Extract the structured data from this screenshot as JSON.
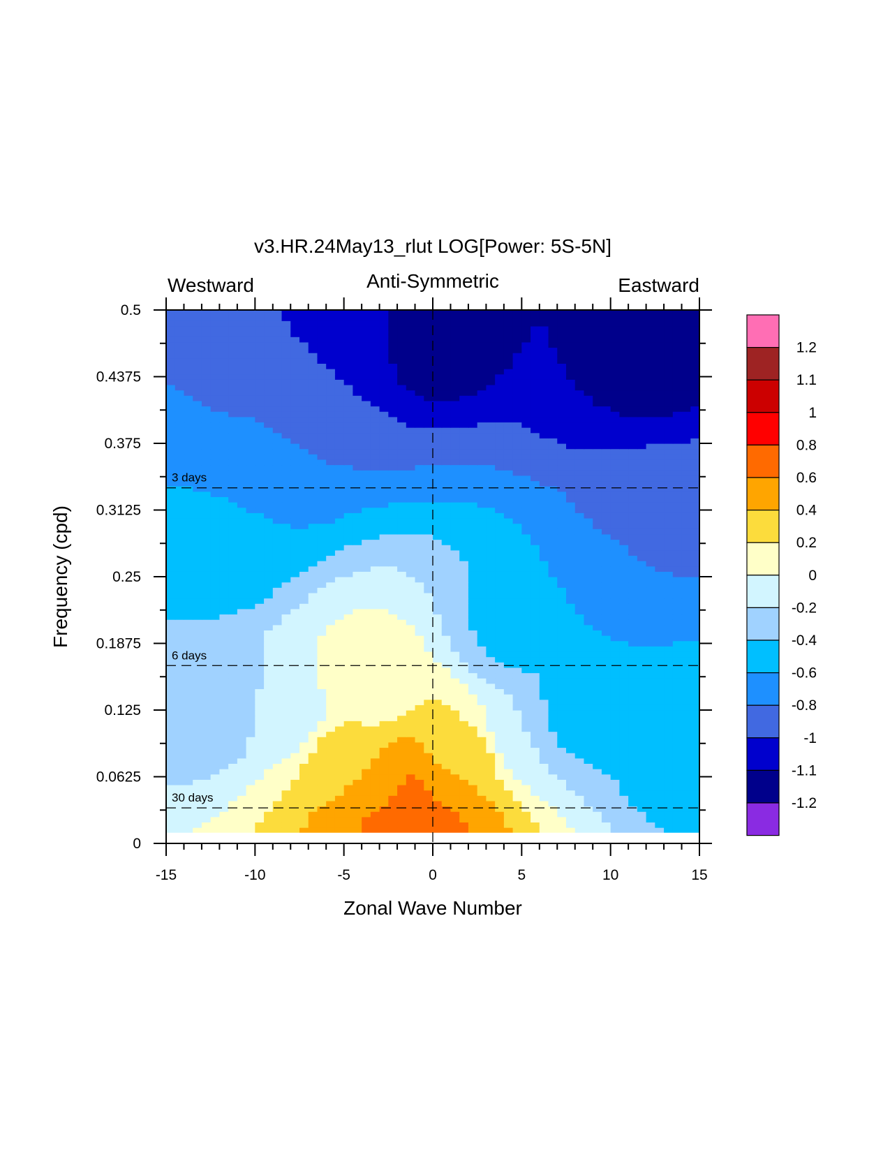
{
  "chart_data": {
    "type": "heatmap",
    "subtype": "filled-contour",
    "title": "v3.HR.24May13_rlut LOG[Power: 5S-5N]",
    "subtitles": {
      "left": "Westward",
      "center": "Anti-Symmetric",
      "right": "Eastward"
    },
    "xlabel": "Zonal Wave Number",
    "ylabel": "Frequency (cpd)",
    "xlim": [
      -15,
      15
    ],
    "ylim": [
      0,
      0.5
    ],
    "x_ticks": [
      -15,
      -10,
      -5,
      0,
      5,
      10,
      15
    ],
    "x_tick_labels": [
      "-15",
      "-10",
      "-5",
      "0",
      "5",
      "10",
      "15"
    ],
    "y_ticks": [
      0,
      0.0625,
      0.125,
      0.1875,
      0.25,
      0.3125,
      0.375,
      0.4375,
      0.5
    ],
    "y_tick_labels": [
      "0",
      "0.0625",
      "0.125",
      "0.1875",
      "0.25",
      "0.3125",
      "0.375",
      "0.4375",
      "0.5"
    ],
    "reference_lines": [
      {
        "orientation": "horizontal",
        "value": 0.3333,
        "label": "3 days"
      },
      {
        "orientation": "horizontal",
        "value": 0.1667,
        "label": "6 days"
      },
      {
        "orientation": "horizontal",
        "value": 0.0333,
        "label": "30 days"
      },
      {
        "orientation": "vertical",
        "value": 0,
        "label": ""
      }
    ],
    "data_ymin": 0.01,
    "contour_levels": [
      -1.2,
      -1.1,
      -1,
      -0.8,
      -0.6,
      -0.4,
      -0.2,
      0,
      0.2,
      0.4,
      0.6,
      0.8,
      1,
      1.1,
      1.2
    ],
    "colorbar": {
      "labels": [
        "1.2",
        "1.1",
        "1",
        "0.8",
        "0.6",
        "0.4",
        "0.2",
        "0",
        "-0.2",
        "-0.4",
        "-0.6",
        "-0.8",
        "-1",
        "-1.1",
        "-1.2"
      ],
      "colors": [
        "#ff6eb4",
        "#9e2323",
        "#cc0000",
        "#ff0000",
        "#ff6a00",
        "#ffa500",
        "#fcdc3c",
        "#ffffc8",
        "#d2f5ff",
        "#a0d2ff",
        "#00bfff",
        "#1e90ff",
        "#4169e1",
        "#0000cd",
        "#00008b",
        "#8a2be2"
      ]
    },
    "field": {
      "description": "approximate log10 power digitized from figure",
      "points": [
        {
          "k": -2,
          "f": 0.03,
          "v": 0.7
        },
        {
          "k": -1,
          "f": 0.03,
          "v": 0.75
        },
        {
          "k": 0,
          "f": 0.025,
          "v": 0.72
        },
        {
          "k": -3,
          "f": 0.05,
          "v": 0.5
        },
        {
          "k": 1,
          "f": 0.05,
          "v": 0.45
        },
        {
          "k": -5,
          "f": 0.08,
          "v": 0.3
        },
        {
          "k": 2,
          "f": 0.08,
          "v": 0.25
        },
        {
          "k": -4,
          "f": 0.15,
          "v": 0.05
        },
        {
          "k": -8,
          "f": 0.12,
          "v": -0.1
        },
        {
          "k": 5,
          "f": 0.1,
          "v": -0.2
        },
        {
          "k": -12,
          "f": 0.13,
          "v": -0.35
        },
        {
          "k": 8,
          "f": 0.12,
          "v": -0.5
        },
        {
          "k": -12,
          "f": 0.28,
          "v": -0.5
        },
        {
          "k": 5,
          "f": 0.2,
          "v": -0.45
        },
        {
          "k": 14,
          "f": 0.1,
          "v": -0.55
        },
        {
          "k": -10,
          "f": 0.36,
          "v": -0.75
        },
        {
          "k": 10,
          "f": 0.25,
          "v": -0.7
        },
        {
          "k": -8,
          "f": 0.43,
          "v": -0.95
        },
        {
          "k": 12,
          "f": 0.3,
          "v": -0.9
        },
        {
          "k": -5,
          "f": 0.48,
          "v": -1.05
        },
        {
          "k": 10,
          "f": 0.44,
          "v": -1.1
        },
        {
          "k": 0,
          "f": 0.48,
          "v": -1.15
        },
        {
          "k": 12,
          "f": 0.46,
          "v": -1.15
        }
      ]
    }
  }
}
